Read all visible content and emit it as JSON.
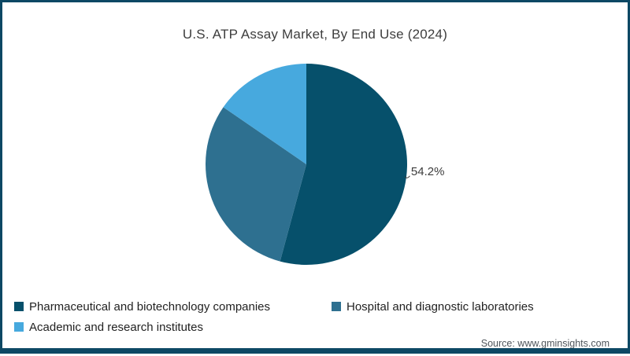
{
  "title": "U.S. ATP Assay Market, By End Use (2024)",
  "source": "Source: www.gminsights.com",
  "frame": {
    "border_color": "#0d4864"
  },
  "chart_data": {
    "type": "pie",
    "title": "U.S. ATP Assay Market, By End Use (2024)",
    "categories": [
      "Pharmaceutical and biotechnology companies",
      "Hospital and diagnostic laboratories",
      "Academic and research institutes"
    ],
    "values": [
      54.2,
      30.4,
      15.4
    ],
    "colors": [
      "#06506b",
      "#2e7090",
      "#47a9de"
    ],
    "data_labels": [
      "54.2%",
      "",
      ""
    ],
    "labeled_slice_index": 0,
    "start_angle_deg": 0,
    "direction": "clockwise",
    "legend_position": "bottom-left"
  }
}
